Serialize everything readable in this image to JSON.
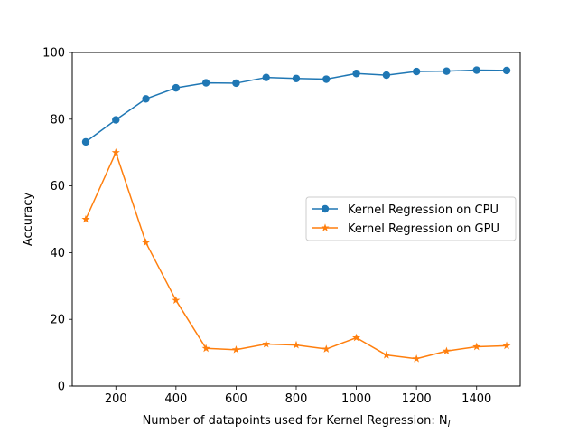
{
  "chart_data": {
    "type": "line",
    "title": "",
    "xlabel": "Number of datapoints used for Kernel Regression: N",
    "xlabel_subscript": "l",
    "ylabel": "Accuracy",
    "xlim": [
      55,
      1545
    ],
    "ylim": [
      0,
      100
    ],
    "xticks": [
      200,
      400,
      600,
      800,
      1000,
      1200,
      1400
    ],
    "yticks": [
      0,
      20,
      40,
      60,
      80,
      100
    ],
    "grid": false,
    "legend_position": "center-right",
    "x": [
      100,
      200,
      300,
      400,
      500,
      600,
      700,
      800,
      900,
      1000,
      1100,
      1200,
      1300,
      1400,
      1500
    ],
    "series": [
      {
        "name": "Kernel Regression on CPU",
        "color": "#1f77b4",
        "marker": "circle",
        "values": [
          73.2,
          79.8,
          86.1,
          89.4,
          90.9,
          90.8,
          92.5,
          92.2,
          92.0,
          93.7,
          93.2,
          94.3,
          94.4,
          94.7,
          94.6
        ]
      },
      {
        "name": "Kernel Regression on GPU",
        "color": "#ff7f0e",
        "marker": "star",
        "values": [
          50.0,
          70.0,
          43.0,
          25.7,
          11.3,
          10.9,
          12.6,
          12.3,
          11.1,
          14.5,
          9.3,
          8.2,
          10.5,
          11.8,
          12.1
        ]
      }
    ]
  }
}
